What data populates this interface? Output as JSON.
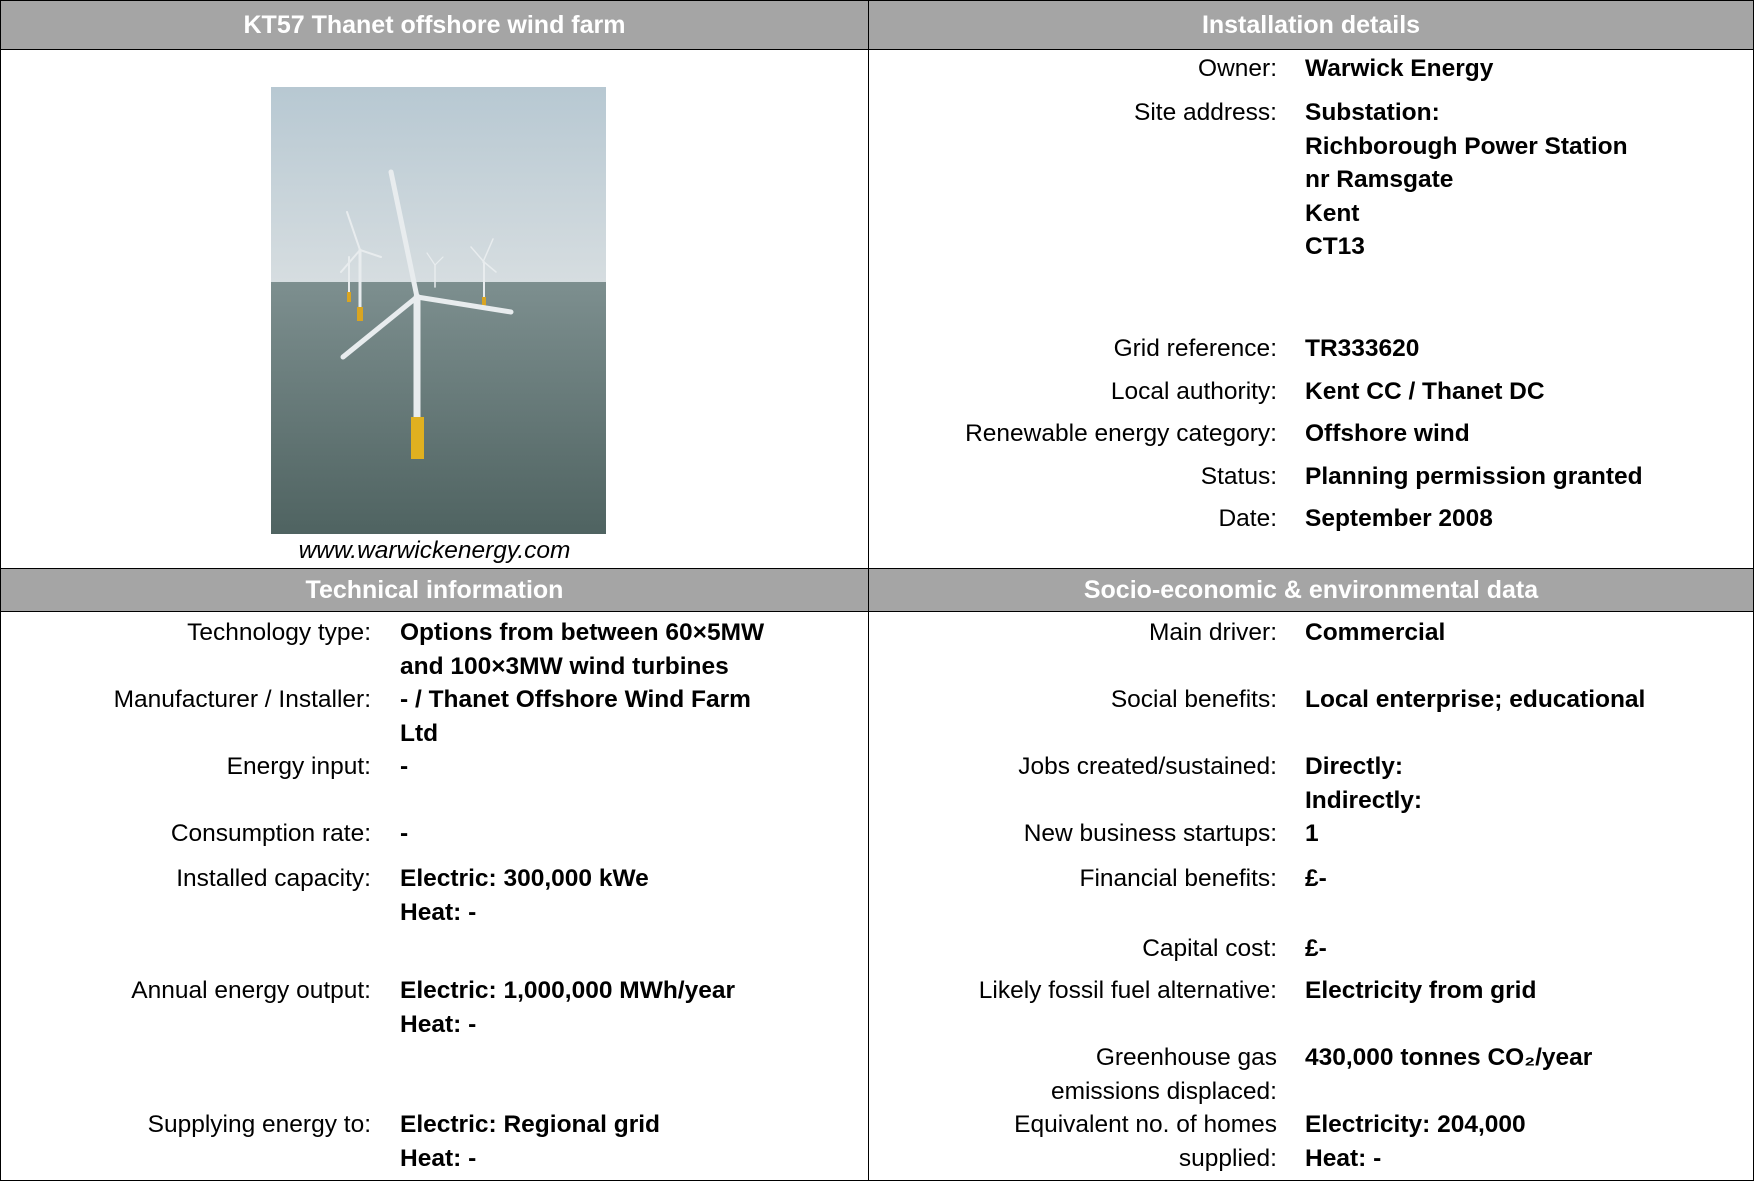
{
  "header": {
    "title": "KT57 Thanet offshore wind farm",
    "installation_title": "Installation details",
    "technical_title": "Technical information",
    "socio_title": "Socio-economic & environmental data"
  },
  "photo": {
    "caption": "www.warwickenergy.com"
  },
  "installation": {
    "rows": [
      {
        "label": [
          "Owner:"
        ],
        "value": [
          "Warwick Energy"
        ]
      },
      {
        "label": [
          "Site address:"
        ],
        "value": [
          "Substation:",
          "Richborough Power Station",
          "nr Ramsgate",
          "Kent",
          "CT13"
        ]
      },
      {
        "label": [
          "Grid reference:"
        ],
        "value": [
          "TR333620"
        ]
      },
      {
        "label": [
          "Local authority:"
        ],
        "value": [
          "Kent CC / Thanet DC"
        ]
      },
      {
        "label": [
          "Renewable energy category:"
        ],
        "value": [
          "Offshore wind"
        ]
      },
      {
        "label": [
          "Status:"
        ],
        "value": [
          "Planning permission granted"
        ]
      },
      {
        "label": [
          "Date:"
        ],
        "value": [
          "September 2008"
        ]
      }
    ]
  },
  "technical": {
    "rows": [
      {
        "label": [
          "Technology type:"
        ],
        "value": [
          "Options from between 60×5MW",
          "and 100×3MW wind turbines"
        ]
      },
      {
        "label": [
          "Manufacturer / Installer:"
        ],
        "value": [
          "- / Thanet Offshore Wind Farm",
          "Ltd"
        ]
      },
      {
        "label": [
          "Energy input:"
        ],
        "value": [
          "-"
        ]
      },
      {
        "label": [
          "Consumption rate:"
        ],
        "value": [
          "-"
        ]
      },
      {
        "label": [
          "Installed capacity:"
        ],
        "value": [
          "Electric: 300,000 kWe",
          "Heat: -"
        ]
      },
      {
        "label": [
          "Annual energy output:"
        ],
        "value": [
          "Electric: 1,000,000 MWh/year",
          "Heat: -"
        ]
      },
      {
        "label": [
          "Supplying energy to:"
        ],
        "value": [
          "Electric: Regional grid",
          "Heat: -"
        ]
      }
    ]
  },
  "socio": {
    "rows": [
      {
        "label": [
          "Main driver:"
        ],
        "value": [
          "Commercial"
        ]
      },
      {
        "label": [
          "Social benefits:"
        ],
        "value": [
          "Local enterprise; educational"
        ]
      },
      {
        "label": [
          "Jobs created/sustained:"
        ],
        "value": [
          "Directly:",
          "Indirectly:"
        ]
      },
      {
        "label": [
          "New business startups:"
        ],
        "value": [
          "1"
        ]
      },
      {
        "label": [
          "Financial benefits:"
        ],
        "value": [
          "£-"
        ]
      },
      {
        "label": [
          "Capital cost:"
        ],
        "value": [
          "£-"
        ]
      },
      {
        "label": [
          "Likely fossil fuel alternative:"
        ],
        "value": [
          "Electricity from grid"
        ]
      },
      {
        "label": [
          "Greenhouse gas",
          "emissions displaced:"
        ],
        "value": [
          "430,000 tonnes CO₂/year"
        ]
      },
      {
        "label": [
          "Equivalent no. of homes",
          "supplied:"
        ],
        "value": [
          "Electricity: 204,000",
          "Heat: -"
        ]
      }
    ]
  }
}
